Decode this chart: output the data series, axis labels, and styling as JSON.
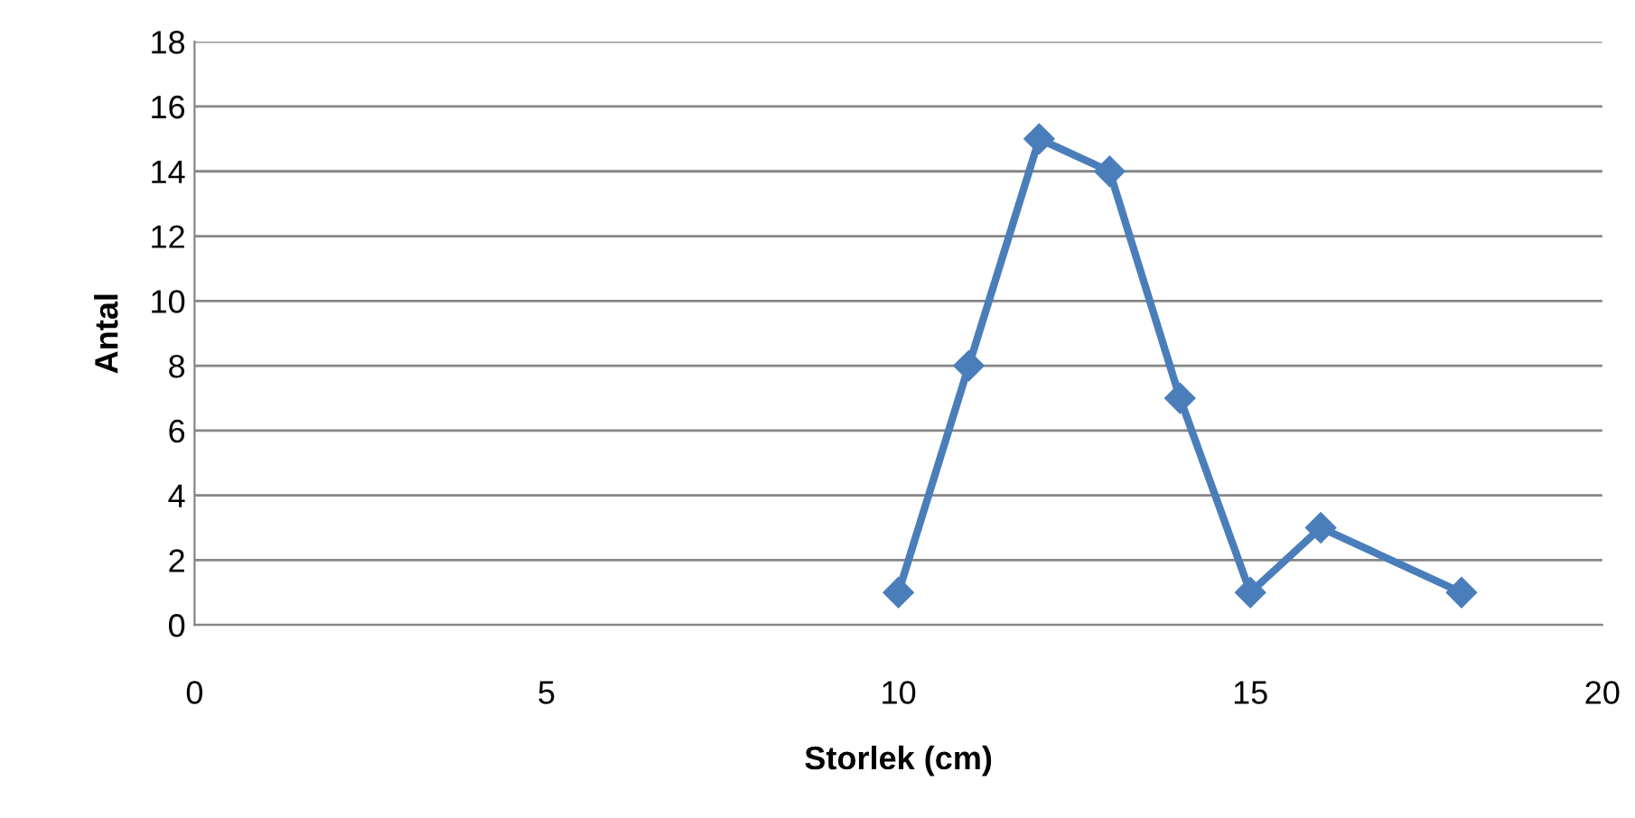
{
  "chart_data": {
    "type": "line",
    "xlabel": "Storlek (cm)",
    "ylabel": "Antal",
    "x": [
      10,
      11,
      12,
      13,
      14,
      15,
      16,
      18
    ],
    "series": [
      {
        "color": "#4a7ebb",
        "values": [
          1,
          8,
          15,
          14,
          7,
          1,
          3,
          1
        ]
      }
    ],
    "xlim": [
      0,
      20
    ],
    "xticks": [
      0,
      5,
      10,
      15,
      20
    ],
    "ylim": [
      0,
      18
    ],
    "yticks": [
      0,
      2,
      4,
      6,
      8,
      10,
      12,
      14,
      16,
      18
    ],
    "grid": "y",
    "legend": false,
    "marker": "diamond",
    "line_style": "solid"
  }
}
